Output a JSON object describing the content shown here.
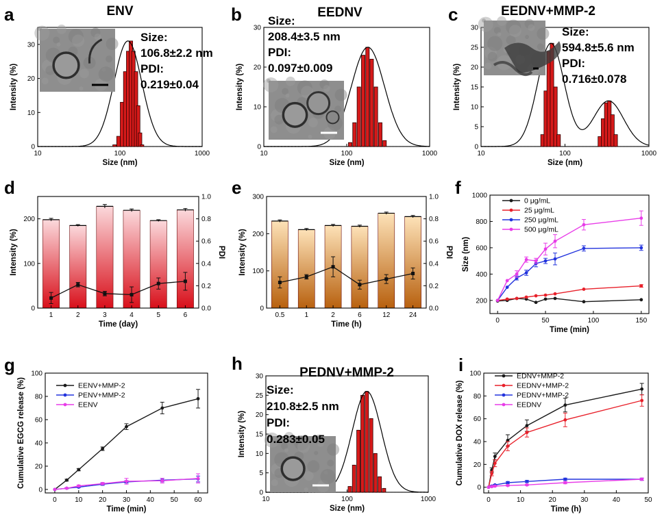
{
  "figure": {
    "panels": [
      {
        "id": "a",
        "letter": "a",
        "title": "ENV",
        "annotation": [
          "Size:",
          "106.8±2.2 nm",
          "PDI:",
          "0.219±0.04"
        ]
      },
      {
        "id": "b",
        "letter": "b",
        "title": "EEDNV",
        "annotation": [
          "Size:",
          "208.4±3.5 nm",
          "PDI:",
          "0.097±0.009"
        ]
      },
      {
        "id": "c",
        "letter": "c",
        "title": "EEDNV+MMP-2",
        "annotation": [
          "Size:",
          "594.8±5.6 nm",
          "PDI:",
          "0.716±0.078"
        ]
      },
      {
        "id": "d",
        "letter": "d",
        "title": "",
        "annotation": []
      },
      {
        "id": "e",
        "letter": "e",
        "title": "",
        "annotation": []
      },
      {
        "id": "f",
        "letter": "f",
        "title": "",
        "annotation": []
      },
      {
        "id": "g",
        "letter": "g",
        "title": "",
        "annotation": []
      },
      {
        "id": "h",
        "letter": "h",
        "title": "PEDNV+MMP-2",
        "annotation": [
          "Size:",
          "210.8±2.5 nm",
          "PDI:",
          "0.283±0.05"
        ]
      },
      {
        "id": "i",
        "letter": "i",
        "title": "",
        "annotation": []
      }
    ]
  },
  "colors": {
    "bar_red": "#d61a1a",
    "bar_edge": "#2a0000",
    "pink_top": "#fbd9dc",
    "pink_bottom": "#d80f1a",
    "orange_top": "#fde2b8",
    "orange_bottom": "#b8610f",
    "black": "#1a1a1a",
    "red": "#e8202a",
    "blue": "#2233dd",
    "magenta": "#e83ce8",
    "tem_bg": "#8e8e8e"
  },
  "chart_data": [
    {
      "id": "a",
      "type": "bar",
      "subtype": "histogram-log",
      "title": "ENV",
      "xlabel": "Size (nm)",
      "ylabel": "Intensity (%)",
      "xlim": [
        10,
        1000
      ],
      "ylim": [
        0,
        35
      ],
      "xscale": "log",
      "xticks": [
        10,
        100,
        1000
      ],
      "yticks": [
        0,
        10,
        20,
        30
      ],
      "bins": [
        {
          "x": [
            86,
            96,
            106,
            116,
            126,
            136,
            146,
            157,
            167,
            176,
            186
          ],
          "y": [
            0.5,
            3,
            13,
            22,
            28,
            31,
            28,
            22,
            12,
            4,
            0.5
          ]
        }
      ],
      "fit": {
        "peaks": [
          {
            "mu": 125,
            "sigma": 0.17,
            "amp": 31
          }
        ]
      },
      "inset": {
        "kind": "TEM image",
        "scale_bar": true
      }
    },
    {
      "id": "b",
      "type": "bar",
      "subtype": "histogram-log",
      "title": "EEDNV",
      "xlabel": "Size (nm)",
      "ylabel": "Intensity (%)",
      "xlim": [
        10,
        1000
      ],
      "ylim": [
        0,
        30
      ],
      "xscale": "log",
      "xticks": [
        10,
        100,
        1000
      ],
      "yticks": [
        0,
        10,
        20,
        30
      ],
      "bins": [
        {
          "x": [
            110,
            124,
            140,
            158,
            178,
            200,
            225,
            254,
            286
          ],
          "y": [
            1,
            6,
            15,
            23,
            25,
            22,
            15,
            6,
            1.5
          ]
        }
      ],
      "fit": {
        "peaks": [
          {
            "mu": 180,
            "sigma": 0.2,
            "amp": 25
          }
        ]
      },
      "inset": {
        "kind": "TEM image",
        "scale_bar": true
      }
    },
    {
      "id": "c",
      "type": "bar",
      "subtype": "histogram-log",
      "title": "EEDNV+MMP-2",
      "xlabel": "Size (nm)",
      "ylabel": "Intensity (%)",
      "xlim": [
        10,
        1000
      ],
      "ylim": [
        0,
        30
      ],
      "xscale": "log",
      "xticks": [
        10,
        100,
        1000
      ],
      "yticks": [
        0,
        5,
        10,
        15,
        20,
        25,
        30
      ],
      "bins": [
        {
          "x": [
            54,
            59,
            64,
            70,
            77,
            84
          ],
          "y": [
            3,
            14,
            24,
            26,
            15,
            3
          ]
        },
        {
          "x": [
            260,
            284,
            310,
            338,
            368,
            402
          ],
          "y": [
            2.5,
            7,
            11,
            11.5,
            8,
            3
          ]
        }
      ],
      "fit": {
        "peaks": [
          {
            "mu": 68,
            "sigma": 0.16,
            "amp": 26
          },
          {
            "mu": 330,
            "sigma": 0.18,
            "amp": 11.5
          }
        ]
      },
      "inset": {
        "kind": "TEM image",
        "scale_bar": true
      }
    },
    {
      "id": "d",
      "type": "bar",
      "subtype": "bar+line dual-axis",
      "xlabel": "Time (day)",
      "ylabel": "Intensity (%)",
      "y2label": "PDI",
      "categories": [
        "1",
        "2",
        "3",
        "4",
        "5",
        "6"
      ],
      "ylim": [
        0,
        250
      ],
      "y2lim": [
        0,
        1.0
      ],
      "yticks": [
        0,
        100,
        200
      ],
      "y2ticks": [
        0.0,
        0.2,
        0.4,
        0.6,
        0.8,
        1.0
      ],
      "series": [
        {
          "name": "Intensity",
          "axis": "left",
          "values": [
            198,
            185,
            228,
            219,
            196,
            220
          ],
          "errors": [
            3,
            2,
            4,
            3,
            2,
            3
          ]
        },
        {
          "name": "PDI",
          "axis": "right",
          "values": [
            0.09,
            0.21,
            0.13,
            0.12,
            0.22,
            0.24
          ],
          "errors": [
            0.05,
            0.02,
            0.02,
            0.07,
            0.05,
            0.08
          ]
        }
      ]
    },
    {
      "id": "e",
      "type": "bar",
      "subtype": "bar+line dual-axis",
      "xlabel": "Time (h)",
      "ylabel": "Intensity (%)",
      "y2label": "PDI",
      "categories": [
        "0.5",
        "1",
        "2",
        "6",
        "12",
        "24"
      ],
      "ylim": [
        0,
        300
      ],
      "y2lim": [
        0,
        1.0
      ],
      "yticks": [
        0,
        100,
        200,
        300
      ],
      "y2ticks": [
        0.0,
        0.2,
        0.4,
        0.6,
        0.8,
        1.0
      ],
      "series": [
        {
          "name": "Intensity",
          "axis": "left",
          "values": [
            234,
            211,
            222,
            220,
            255,
            246
          ],
          "errors": [
            3,
            3,
            3,
            3,
            3,
            3
          ]
        },
        {
          "name": "PDI",
          "axis": "right",
          "values": [
            0.23,
            0.28,
            0.37,
            0.21,
            0.26,
            0.31
          ],
          "errors": [
            0.05,
            0.02,
            0.09,
            0.04,
            0.04,
            0.05
          ]
        }
      ]
    },
    {
      "id": "f",
      "type": "line",
      "xlabel": "Time (min)",
      "ylabel": "Size (nm)",
      "xlim": [
        -8,
        158
      ],
      "ylim": [
        100,
        1000
      ],
      "xticks": [
        0,
        50,
        100,
        150
      ],
      "yticks": [
        200,
        400,
        600,
        800,
        1000
      ],
      "x": [
        0,
        10,
        20,
        30,
        40,
        50,
        60,
        90,
        150
      ],
      "series": [
        {
          "name": "0 μg/mL",
          "color": "#1a1a1a",
          "values": [
            195,
            200,
            215,
            210,
            185,
            210,
            215,
            190,
            205
          ],
          "errors": [
            0,
            0,
            0,
            0,
            0,
            0,
            0,
            0,
            0
          ]
        },
        {
          "name": "25 μg/mL",
          "color": "#e8202a",
          "values": [
            200,
            210,
            215,
            225,
            235,
            240,
            250,
            285,
            310
          ],
          "errors": [
            0,
            0,
            0,
            0,
            0,
            0,
            0,
            0,
            10
          ]
        },
        {
          "name": "250 μg/mL",
          "color": "#2233dd",
          "values": [
            200,
            300,
            370,
            410,
            480,
            500,
            515,
            595,
            600
          ],
          "errors": [
            0,
            0,
            15,
            20,
            25,
            20,
            45,
            20,
            20
          ]
        },
        {
          "name": "500 μg/mL",
          "color": "#e83ce8",
          "values": [
            200,
            350,
            400,
            510,
            500,
            590,
            650,
            775,
            825
          ],
          "errors": [
            0,
            0,
            25,
            20,
            20,
            45,
            50,
            40,
            55
          ]
        }
      ]
    },
    {
      "id": "g",
      "type": "line",
      "xlabel": "Time (min)",
      "ylabel": "Cumulative EGCG release (%)",
      "xlim": [
        -4,
        64
      ],
      "ylim": [
        -3,
        100
      ],
      "xticks": [
        0,
        10,
        20,
        30,
        40,
        50,
        60
      ],
      "yticks": [
        0,
        20,
        40,
        60,
        80,
        100
      ],
      "x": [
        0,
        5,
        10,
        20,
        30,
        45,
        60
      ],
      "series": [
        {
          "name": "EENV+MMP-2",
          "color": "#1a1a1a",
          "values": [
            0,
            8,
            17,
            35,
            54,
            70,
            78
          ],
          "errors": [
            0,
            0.8,
            1,
            1.5,
            2.5,
            5,
            8
          ]
        },
        {
          "name": "PENV+MMP-2",
          "color": "#2233dd",
          "values": [
            0,
            1,
            2,
            4.5,
            6.5,
            8,
            9
          ],
          "errors": [
            0,
            0.5,
            0.5,
            1,
            1,
            1.5,
            2.5
          ]
        },
        {
          "name": "EENV",
          "color": "#e83ce8",
          "values": [
            0,
            1,
            3,
            5,
            7,
            7.5,
            9.5
          ],
          "errors": [
            0,
            0.5,
            0.8,
            1,
            2.5,
            2,
            4
          ]
        }
      ]
    },
    {
      "id": "h",
      "type": "bar",
      "subtype": "histogram-log",
      "title": "PEDNV+MMP-2",
      "xlabel": "Size (nm)",
      "ylabel": "Intensity (%)",
      "xlim": [
        10,
        1000
      ],
      "ylim": [
        0,
        30
      ],
      "xscale": "log",
      "xticks": [
        10,
        100,
        1000
      ],
      "yticks": [
        0,
        5,
        10,
        15,
        20,
        25,
        30
      ],
      "bins": [
        {
          "x": [
            108,
            122,
            138,
            155,
            175,
            198,
            223,
            252,
            285
          ],
          "y": [
            1.5,
            7,
            16,
            25,
            26,
            19,
            10,
            4,
            1
          ]
        }
      ],
      "fit": {
        "peaks": [
          {
            "mu": 175,
            "sigma": 0.18,
            "amp": 26
          }
        ]
      },
      "inset": {
        "kind": "TEM image",
        "scale_bar": true
      }
    },
    {
      "id": "i",
      "type": "line",
      "xlabel": "Time (h)",
      "ylabel": "Cumulative DOX release (%)",
      "xlim": [
        -1.5,
        50
      ],
      "ylim": [
        -5,
        100
      ],
      "xticks": [
        0,
        10,
        20,
        30,
        40,
        50
      ],
      "yticks": [
        0,
        20,
        40,
        60,
        80,
        100
      ],
      "x": [
        0,
        1,
        2,
        6,
        12,
        24,
        48
      ],
      "series": [
        {
          "name": "EDNV+MMP-2",
          "color": "#1a1a1a",
          "values": [
            0,
            15,
            27,
            41,
            54,
            72,
            86
          ],
          "errors": [
            0,
            2,
            3,
            5,
            5,
            6,
            5
          ]
        },
        {
          "name": "EEDNV+MMP-2",
          "color": "#e8202a",
          "values": [
            0,
            12,
            21,
            36,
            48,
            59,
            76
          ],
          "errors": [
            0,
            2,
            3,
            4,
            4,
            6,
            5
          ]
        },
        {
          "name": "PEDNV+MMP-2",
          "color": "#2233dd",
          "values": [
            0,
            1,
            2,
            4,
            5,
            7,
            7
          ],
          "errors": [
            0,
            0.5,
            0.5,
            1,
            1,
            1,
            1
          ]
        },
        {
          "name": "EEDNV",
          "color": "#e83ce8",
          "values": [
            0,
            0.5,
            1,
            1.5,
            2,
            4,
            7
          ],
          "errors": [
            0,
            0.5,
            0.5,
            0.5,
            0.5,
            1,
            1
          ]
        }
      ]
    }
  ]
}
